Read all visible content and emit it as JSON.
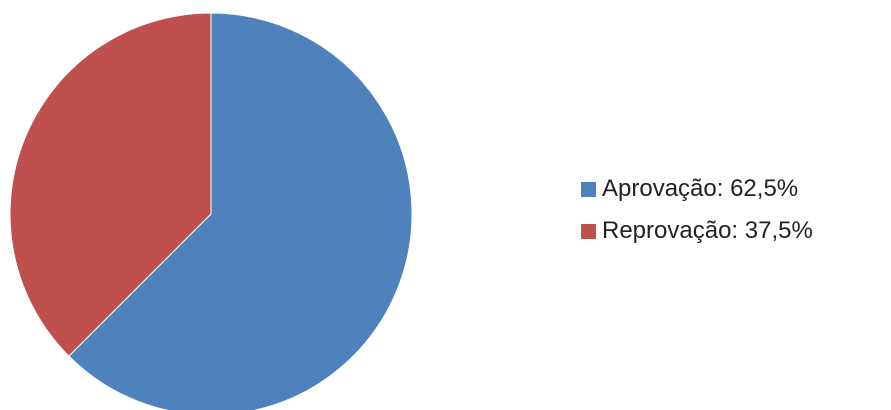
{
  "chart_data": {
    "type": "pie",
    "title": "",
    "slices": [
      {
        "label": "Aprovação: 62,5%",
        "value": 62.5,
        "color": "#4F81BD"
      },
      {
        "label": "Reprovação: 37,5%",
        "value": 37.5,
        "color": "#C0504D"
      }
    ],
    "start_angle_deg": 0,
    "direction": "clockwise",
    "legend": {
      "placement": "right"
    }
  }
}
